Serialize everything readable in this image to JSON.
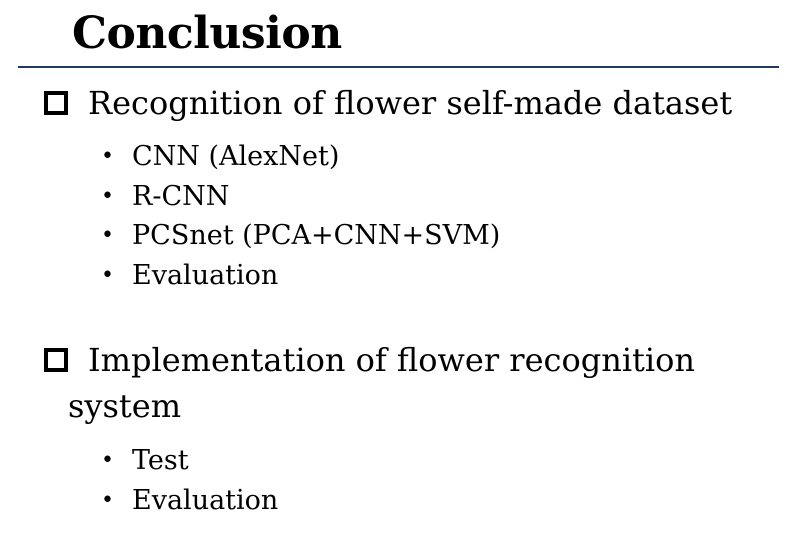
{
  "slide": {
    "title": "Conclusion",
    "sections": [
      {
        "heading": "Recognition of flower self-made dataset",
        "items": [
          "CNN (AlexNet)",
          "R-CNN",
          "PCSnet (PCA+CNN+SVM)",
          "Evaluation"
        ]
      },
      {
        "heading_line1": "Implementation of flower recognition",
        "heading_line2": "system",
        "items": [
          "Test",
          "Evaluation"
        ]
      }
    ]
  },
  "colors": {
    "rule": "#1f3864",
    "text": "#000000",
    "background": "#ffffff"
  },
  "icons": {
    "section_marker": "hollow-square-icon",
    "list_marker": "bullet-dot-icon"
  }
}
